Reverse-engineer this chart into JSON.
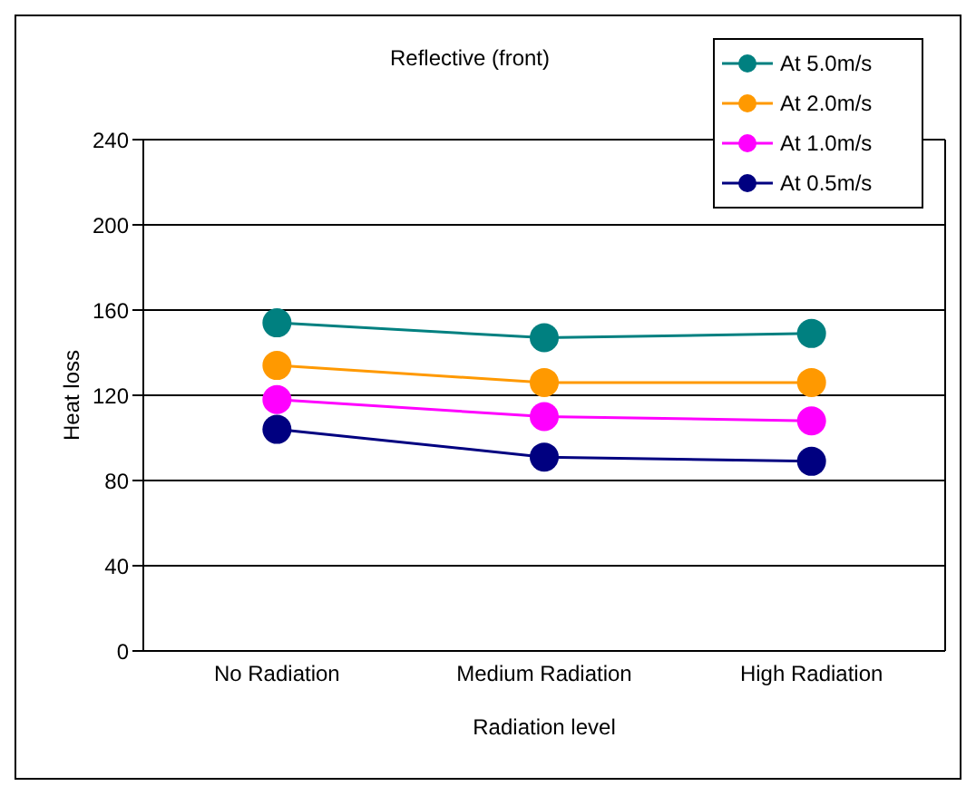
{
  "chart_data": {
    "type": "line",
    "title": "Reflective (front)",
    "xlabel": "Radiation level",
    "ylabel": "Heat loss",
    "categories": [
      "No Radiation",
      "Medium Radiation",
      "High Radiation"
    ],
    "series": [
      {
        "name": "At 5.0m/s",
        "color": "#008080",
        "values": [
          154,
          147,
          149
        ]
      },
      {
        "name": "At 2.0m/s",
        "color": "#ff9900",
        "values": [
          134,
          126,
          126
        ]
      },
      {
        "name": "At 1.0m/s",
        "color": "#ff00ff",
        "values": [
          118,
          110,
          108
        ]
      },
      {
        "name": "At 0.5m/s",
        "color": "#000080",
        "values": [
          104,
          91,
          89
        ]
      }
    ],
    "ylim": [
      0,
      240
    ],
    "yticks": [
      0,
      40,
      80,
      120,
      160,
      200,
      240
    ],
    "grid": "y",
    "legend": "top right",
    "marker": "circle",
    "line_style": "solid"
  }
}
